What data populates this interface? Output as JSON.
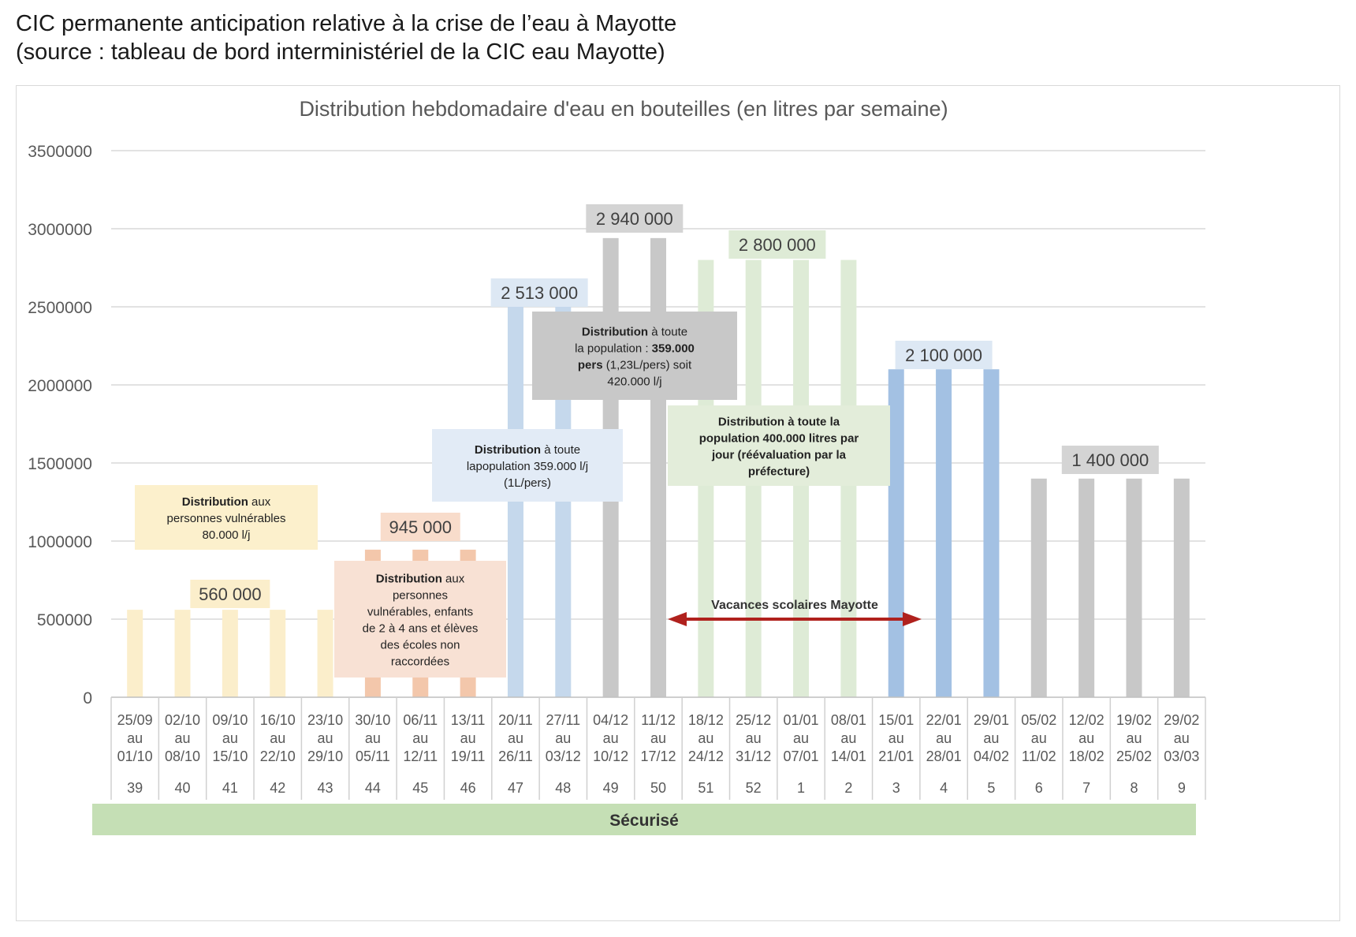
{
  "header": {
    "line1": "CIC permanente anticipation relative à la crise de l’eau à Mayotte",
    "line2": "(source : tableau de bord interministériel de la CIC eau Mayotte)"
  },
  "colors": {
    "yellow": "#fbeecb",
    "orange": "#f3c7ab",
    "light_blue": "#c5d8ec",
    "blue": "#a3c1e3",
    "gray": "#c8c8c8",
    "green": "#deebd6",
    "bottom_bar": "#c5dfb5",
    "arrow": "#b0211d"
  },
  "chart_data": {
    "type": "bar",
    "title": "Distribution hebdomadaire d'eau en bouteilles (en litres par semaine)",
    "xlabel": "",
    "ylabel": "",
    "ylim": [
      0,
      3500000
    ],
    "yticks": [
      "0",
      "500000",
      "1000000",
      "1500000",
      "2000000",
      "2500000",
      "3000000",
      "3500000"
    ],
    "grid": true,
    "legend": "none",
    "categories": [
      {
        "dates": [
          "25/09",
          "au",
          "01/10"
        ],
        "week": "39",
        "value": 560000,
        "color": "yellow"
      },
      {
        "dates": [
          "02/10",
          "au",
          "08/10"
        ],
        "week": "40",
        "value": 560000,
        "color": "yellow"
      },
      {
        "dates": [
          "09/10",
          "au",
          "15/10"
        ],
        "week": "41",
        "value": 560000,
        "color": "yellow"
      },
      {
        "dates": [
          "16/10",
          "au",
          "22/10"
        ],
        "week": "42",
        "value": 560000,
        "color": "yellow"
      },
      {
        "dates": [
          "23/10",
          "au",
          "29/10"
        ],
        "week": "43",
        "value": 560000,
        "color": "yellow"
      },
      {
        "dates": [
          "30/10",
          "au",
          "05/11"
        ],
        "week": "44",
        "value": 945000,
        "color": "orange"
      },
      {
        "dates": [
          "06/11",
          "au",
          "12/11"
        ],
        "week": "45",
        "value": 945000,
        "color": "orange"
      },
      {
        "dates": [
          "13/11",
          "au",
          "19/11"
        ],
        "week": "46",
        "value": 945000,
        "color": "orange"
      },
      {
        "dates": [
          "20/11",
          "au",
          "26/11"
        ],
        "week": "47",
        "value": 2513000,
        "color": "light_blue"
      },
      {
        "dates": [
          "27/11",
          "au",
          "03/12"
        ],
        "week": "48",
        "value": 2513000,
        "color": "light_blue"
      },
      {
        "dates": [
          "04/12",
          "au",
          "10/12"
        ],
        "week": "49",
        "value": 2940000,
        "color": "gray"
      },
      {
        "dates": [
          "11/12",
          "au",
          "17/12"
        ],
        "week": "50",
        "value": 2940000,
        "color": "gray"
      },
      {
        "dates": [
          "18/12",
          "au",
          "24/12"
        ],
        "week": "51",
        "value": 2800000,
        "color": "green"
      },
      {
        "dates": [
          "25/12",
          "au",
          "31/12"
        ],
        "week": "52",
        "value": 2800000,
        "color": "green"
      },
      {
        "dates": [
          "01/01",
          "au",
          "07/01"
        ],
        "week": "1",
        "value": 2800000,
        "color": "green"
      },
      {
        "dates": [
          "08/01",
          "au",
          "14/01"
        ],
        "week": "2",
        "value": 2800000,
        "color": "green"
      },
      {
        "dates": [
          "15/01",
          "au",
          "21/01"
        ],
        "week": "3",
        "value": 2100000,
        "color": "blue"
      },
      {
        "dates": [
          "22/01",
          "au",
          "28/01"
        ],
        "week": "4",
        "value": 2100000,
        "color": "blue"
      },
      {
        "dates": [
          "29/01",
          "au",
          "04/02"
        ],
        "week": "5",
        "value": 2100000,
        "color": "blue"
      },
      {
        "dates": [
          "05/02",
          "au",
          "11/02"
        ],
        "week": "6",
        "value": 1400000,
        "color": "gray"
      },
      {
        "dates": [
          "12/02",
          "au",
          "18/02"
        ],
        "week": "7",
        "value": 1400000,
        "color": "gray"
      },
      {
        "dates": [
          "19/02",
          "au",
          "25/02"
        ],
        "week": "8",
        "value": 1400000,
        "color": "gray"
      },
      {
        "dates": [
          "29/02",
          "au",
          "03/03"
        ],
        "week": "9",
        "value": 1400000,
        "color": "gray"
      }
    ],
    "value_labels": [
      {
        "text": "560 000",
        "over": [
          0,
          4
        ],
        "fill": "#fbeecb"
      },
      {
        "text": "945 000",
        "over": [
          5,
          7
        ],
        "fill": "#f8dccb"
      },
      {
        "text": "2 513 000",
        "over": [
          8,
          9
        ],
        "fill": "#dde8f4"
      },
      {
        "text": "2 940 000",
        "over": [
          10,
          11
        ],
        "fill": "#d4d4d4"
      },
      {
        "text": "2 800 000",
        "over": [
          12,
          15
        ],
        "fill": "#deebd6"
      },
      {
        "text": "2 100 000",
        "over": [
          16,
          18
        ],
        "fill": "#dde8f4"
      },
      {
        "text": "1 400 000",
        "over": [
          19,
          22
        ],
        "fill": "#d4d4d4"
      }
    ],
    "annotations": [
      {
        "key": "yellow",
        "fill": "#fcf0cc",
        "lines": [
          [
            {
              "t": "Distribution",
              "b": true
            },
            {
              "t": " aux",
              "b": false
            }
          ],
          [
            {
              "t": "personnes vulnérables",
              "b": false
            }
          ],
          [
            {
              "t": "80.000 l/j",
              "b": false
            }
          ]
        ]
      },
      {
        "key": "orange",
        "fill": "#f8e1d4",
        "lines": [
          [
            {
              "t": "Distribution",
              "b": true
            },
            {
              "t": " aux",
              "b": false
            }
          ],
          [
            {
              "t": "personnes",
              "b": false
            }
          ],
          [
            {
              "t": "vulnérables, enfants",
              "b": false
            }
          ],
          [
            {
              "t": "de 2 à 4 ans et élèves",
              "b": false
            }
          ],
          [
            {
              "t": "des écoles non",
              "b": false
            }
          ],
          [
            {
              "t": "raccordées",
              "b": false
            }
          ]
        ]
      },
      {
        "key": "lightblue",
        "fill": "#e2ebf6",
        "lines": [
          [
            {
              "t": "Distribution",
              "b": true
            },
            {
              "t": " à toute",
              "b": false
            }
          ],
          [
            {
              "t": "lapopulation 359.000 l/j",
              "b": false
            }
          ],
          [
            {
              "t": "(1L/pers)",
              "b": false
            }
          ]
        ]
      },
      {
        "key": "gray",
        "fill": "#c8c8c8",
        "lines": [
          [
            {
              "t": "Distribution",
              "b": true
            },
            {
              "t": " à toute",
              "b": false
            }
          ],
          [
            {
              "t": "la population : ",
              "b": false
            },
            {
              "t": "359.000",
              "b": true
            }
          ],
          [
            {
              "t": "pers",
              "b": true
            },
            {
              "t": " (1,23L/pers) soit",
              "b": false
            }
          ],
          [
            {
              "t": "420.000 l/j",
              "b": false
            }
          ]
        ]
      },
      {
        "key": "green",
        "fill": "#e3edda",
        "lines": [
          [
            {
              "t": "Distribution à toute la",
              "b": true
            }
          ],
          [
            {
              "t": "population 400.000 litres par",
              "b": true
            }
          ],
          [
            {
              "t": "jour (réévaluation par la",
              "b": true
            }
          ],
          [
            {
              "t": "préfecture)",
              "b": true
            }
          ]
        ]
      }
    ],
    "vacation_label": "Vacances scolaires Mayotte",
    "status_bar_label": "Sécurisé"
  }
}
